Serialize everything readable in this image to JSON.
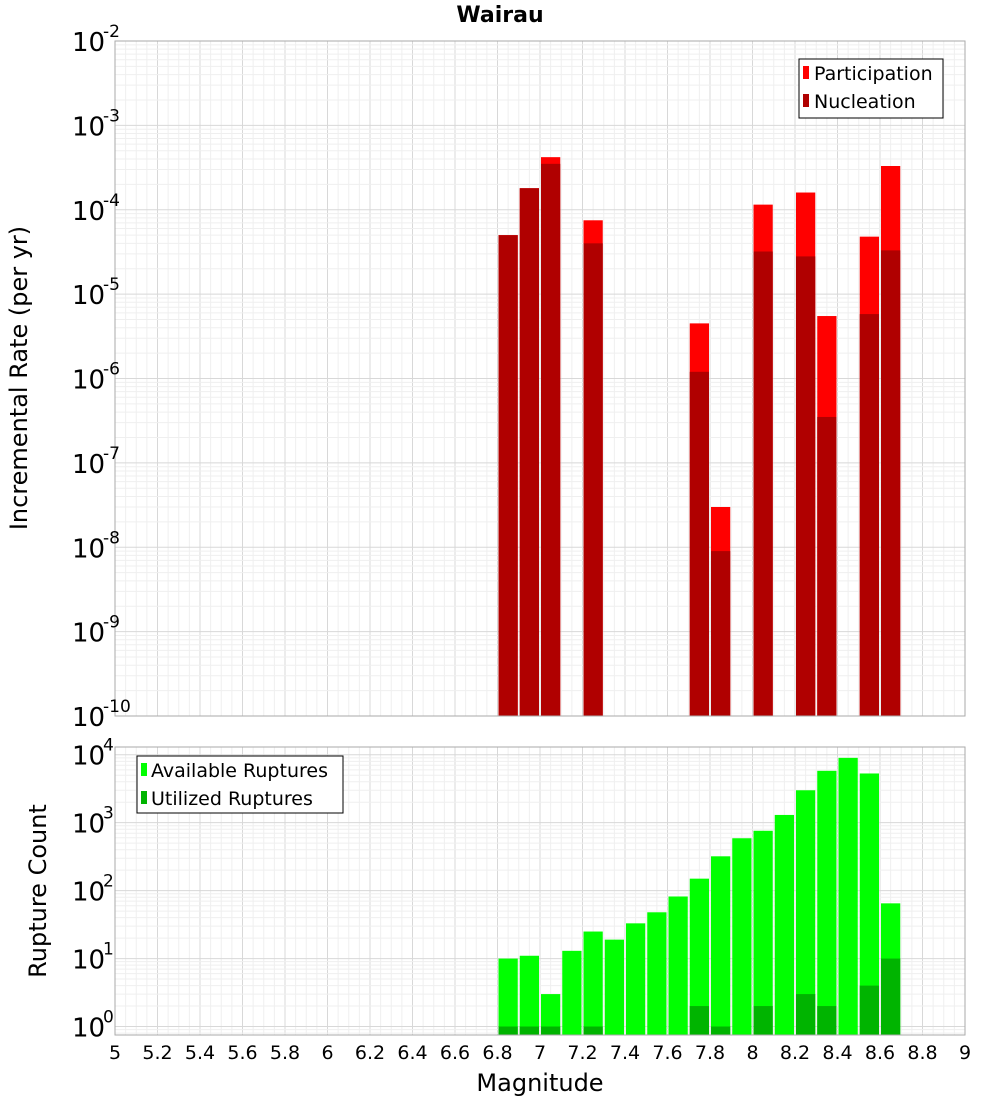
{
  "chart_data": [
    {
      "type": "bar",
      "title": "Wairau",
      "xlabel": "",
      "ylabel": "Incremental Rate (per yr)",
      "yscale": "log",
      "ylim": [
        1e-10,
        0.01
      ],
      "xlim": [
        5,
        9
      ],
      "y_tick_labels": [
        {
          "base": "10",
          "exp": "-10"
        },
        {
          "base": "10",
          "exp": "-9"
        },
        {
          "base": "10",
          "exp": "-8"
        },
        {
          "base": "10",
          "exp": "-7"
        },
        {
          "base": "10",
          "exp": "-6"
        },
        {
          "base": "10",
          "exp": "-5"
        },
        {
          "base": "10",
          "exp": "-4"
        },
        {
          "base": "10",
          "exp": "-3"
        },
        {
          "base": "10",
          "exp": "-2"
        }
      ],
      "x": [
        6.85,
        6.95,
        7.05,
        7.25,
        7.75,
        7.85,
        8.05,
        8.25,
        8.35,
        8.55,
        8.65
      ],
      "series": [
        {
          "name": "Participation",
          "color": "#ff0000",
          "values": [
            5e-05,
            0.00018,
            0.00042,
            7.5e-05,
            4.5e-06,
            3e-08,
            0.000115,
            0.00016,
            5.5e-06,
            4.8e-05,
            0.00033
          ]
        },
        {
          "name": "Nucleation",
          "color": "#b00000",
          "values": [
            5e-05,
            0.00018,
            0.00035,
            4e-05,
            1.2e-06,
            9e-09,
            3.2e-05,
            2.8e-05,
            3.5e-07,
            5.8e-06,
            3.3e-05
          ]
        }
      ],
      "legend_position": "top-right",
      "grid": true
    },
    {
      "type": "bar",
      "title": "",
      "xlabel": "Magnitude",
      "ylabel": "Rupture Count",
      "yscale": "log",
      "ylim": [
        0.75,
        13000
      ],
      "xlim": [
        5,
        9
      ],
      "y_tick_labels": [
        {
          "base": "10",
          "exp": "0",
          "value": 1
        },
        {
          "base": "10",
          "exp": "1",
          "value": 10
        },
        {
          "base": "10",
          "exp": "2",
          "value": 100
        },
        {
          "base": "10",
          "exp": "3",
          "value": 1000
        },
        {
          "base": "10",
          "exp": "4",
          "value": 10000
        }
      ],
      "x_ticks": [
        "5",
        "5.2",
        "5.4",
        "5.6",
        "5.8",
        "6",
        "6.2",
        "6.4",
        "6.6",
        "6.8",
        "7",
        "7.2",
        "7.4",
        "7.6",
        "7.8",
        "8",
        "8.2",
        "8.4",
        "8.6",
        "8.8",
        "9"
      ],
      "x": [
        6.85,
        6.95,
        7.05,
        7.15,
        7.25,
        7.35,
        7.45,
        7.55,
        7.65,
        7.75,
        7.85,
        7.95,
        8.05,
        8.15,
        8.25,
        8.35,
        8.45,
        8.55,
        8.65
      ],
      "series": [
        {
          "name": "Available Ruptures",
          "color": "#00ff00",
          "values": [
            10,
            11,
            3,
            13,
            25,
            19,
            33,
            48,
            82,
            150,
            320,
            590,
            760,
            1300,
            3000,
            5800,
            9000,
            5300,
            65
          ]
        },
        {
          "name": "Utilized Ruptures",
          "color": "#00b400",
          "values": [
            1,
            1,
            1,
            0,
            1,
            0,
            0,
            0,
            0,
            2,
            1,
            0,
            2,
            0,
            3,
            2,
            0,
            4,
            10
          ]
        }
      ],
      "legend_position": "top-left",
      "grid": true
    }
  ]
}
